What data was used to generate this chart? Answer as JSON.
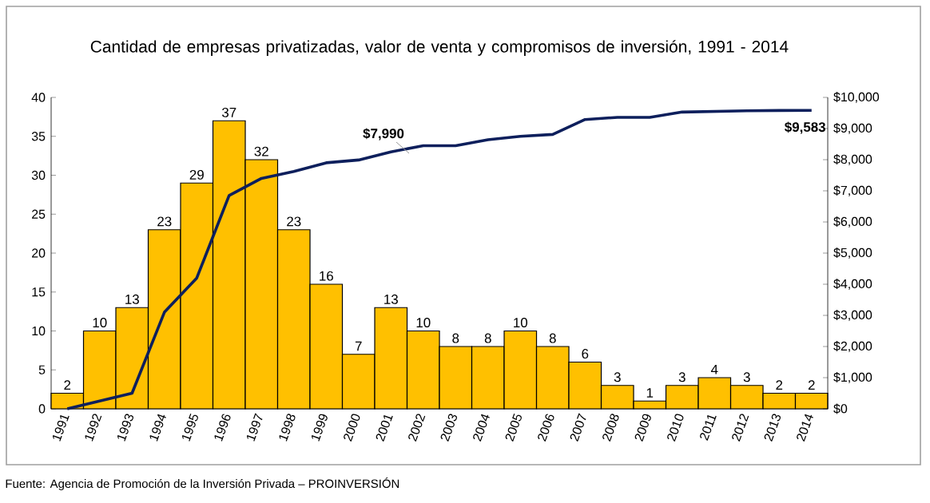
{
  "chart_data": {
    "type": "bar",
    "title": "Cantidad de empresas privatizadas, valor de venta y compromisos de inversión, 1991 - 2014",
    "categories": [
      "1991",
      "1992",
      "1993",
      "1994",
      "1995",
      "1996",
      "1997",
      "1998",
      "1999",
      "2000",
      "2001",
      "2002",
      "2003",
      "2004",
      "2005",
      "2006",
      "2007",
      "2008",
      "2009",
      "2010",
      "2011",
      "2012",
      "2013",
      "2014"
    ],
    "series": [
      {
        "color": "#ffc000",
        "values": [
          2,
          10,
          13,
          23,
          29,
          37,
          32,
          23,
          16,
          7,
          13,
          10,
          8,
          8,
          10,
          8,
          6,
          3,
          1,
          3,
          4,
          3,
          2,
          2
        ],
        "value_labels": [
          "2",
          "10",
          "13",
          "23",
          "29",
          "37",
          "32",
          "23",
          "16",
          "7",
          "13",
          "10",
          "8",
          "8",
          "10",
          "8",
          "6",
          "3",
          "1",
          "3",
          "4",
          "3",
          "2",
          "2"
        ]
      },
      {
        "type": "line",
        "axis": "y2",
        "color": "#0d1f5c",
        "values": [
          0,
          250,
          500,
          3100,
          4200,
          6850,
          7400,
          7620,
          7900,
          7990,
          8250,
          8450,
          8450,
          8640,
          8750,
          8810,
          9290,
          9360,
          9360,
          9530,
          9550,
          9570,
          9580,
          9583
        ]
      }
    ],
    "ylim": [
      0,
      40
    ],
    "yticks": [
      0,
      5,
      10,
      15,
      20,
      25,
      30,
      35,
      40
    ],
    "y2lim": [
      0,
      10000
    ],
    "y2ticks": [
      {
        "value": 0,
        "label": "$0"
      },
      {
        "value": 1000,
        "label": "$1,000"
      },
      {
        "value": 2000,
        "label": "$2,000"
      },
      {
        "value": 3000,
        "label": "$3,000"
      },
      {
        "value": 4000,
        "label": "$4,000"
      },
      {
        "value": 5000,
        "label": "$5,000"
      },
      {
        "value": 6000,
        "label": "$6,000"
      },
      {
        "value": 7000,
        "label": "$7,000"
      },
      {
        "value": 8000,
        "label": "$8,000"
      },
      {
        "value": 9000,
        "label": "$9,000"
      },
      {
        "value": 10000,
        "label": "$10,000"
      }
    ],
    "annotations": [
      "$7,990",
      "$9,583",
      "Fuente: Agencia de Promoción de la Inversión Privada – PROINVERSIÓN"
    ]
  }
}
